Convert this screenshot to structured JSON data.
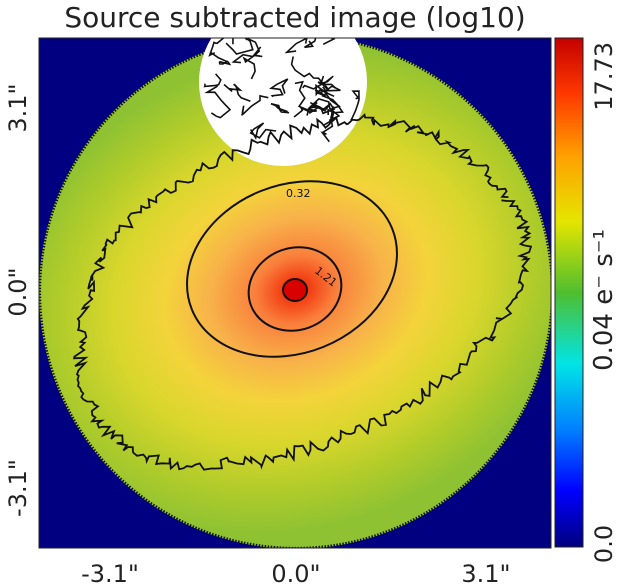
{
  "chart_data": {
    "type": "heatmap",
    "title": "Source subtracted image (log10)",
    "xlabel": "",
    "ylabel": "",
    "x_ticks": [
      "-3.1\"",
      "0.0\"",
      "3.1\""
    ],
    "y_ticks": [
      "3.1\"",
      "0.0\"",
      "-3.1\""
    ],
    "xlim": [
      -4.4,
      4.4
    ],
    "ylim": [
      -4.4,
      4.4
    ],
    "mask": {
      "shape": "circle",
      "center": [
        0.0,
        0.0
      ],
      "radius": 4.3
    },
    "masked_region": {
      "shape": "circle",
      "center": [
        -0.3,
        3.8
      ],
      "radius": 1.5
    },
    "source": {
      "center": [
        0.0,
        0.3
      ],
      "peak": 17.73
    },
    "colorbar": {
      "label": "e⁻ s⁻¹",
      "label_prefix": "0.04",
      "ticks": [
        "0.0",
        "0.04",
        "17.73"
      ],
      "scale": "log10",
      "colormap": "jet",
      "min": 0.0,
      "max": 17.73
    },
    "contours": [
      {
        "level": "0.32",
        "label": "0.32"
      },
      {
        "level": "1.21",
        "label": "1.21"
      }
    ],
    "background_color": "#000080",
    "grid": false
  }
}
